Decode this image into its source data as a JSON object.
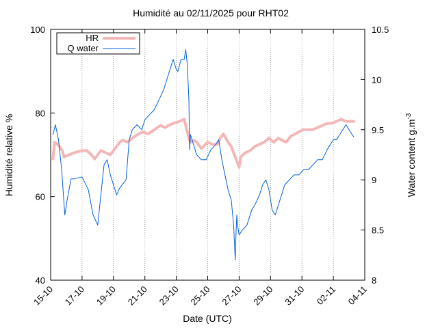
{
  "chart_data": {
    "type": "line",
    "title": "Humidité au 02/11/2025 pour RHT02",
    "xlabel": "Date (UTC)",
    "ylabel": "Humidité relative %",
    "y2label_main": "Water content g.m",
    "y2label_sup": "-3",
    "xlim": [
      0,
      20
    ],
    "ylim": [
      40,
      100
    ],
    "y2lim": [
      8,
      10.5
    ],
    "x_ticks": [
      {
        "x": 0,
        "label": "15-10"
      },
      {
        "x": 2,
        "label": "17-10"
      },
      {
        "x": 4,
        "label": "19-10"
      },
      {
        "x": 6,
        "label": "21-10"
      },
      {
        "x": 8,
        "label": "23-10"
      },
      {
        "x": 10,
        "label": "25-10"
      },
      {
        "x": 12,
        "label": "27-10"
      },
      {
        "x": 14,
        "label": "29-10"
      },
      {
        "x": 16,
        "label": "31-10"
      },
      {
        "x": 18,
        "label": "02-11"
      },
      {
        "x": 20,
        "label": "04-11"
      }
    ],
    "y_ticks": [
      {
        "v": 40,
        "label": "40"
      },
      {
        "v": 60,
        "label": "60"
      },
      {
        "v": 80,
        "label": "80"
      },
      {
        "v": 100,
        "label": "100"
      }
    ],
    "y2_ticks": [
      {
        "v": 8,
        "label": "8"
      },
      {
        "v": 8.5,
        "label": "8.5"
      },
      {
        "v": 9,
        "label": "9"
      },
      {
        "v": 9.5,
        "label": "9.5"
      },
      {
        "v": 10,
        "label": "10"
      },
      {
        "v": 10.5,
        "label": "10.5"
      }
    ],
    "grid": "vertical dotted at x ticks",
    "legend": "top-left",
    "series": [
      {
        "name": "HR",
        "axis": "left",
        "color": "#f4b6b6",
        "x": [
          0.15,
          0.25,
          0.45,
          0.75,
          0.85,
          1.2,
          1.5,
          2.0,
          2.3,
          2.6,
          2.8,
          3.0,
          3.2,
          3.5,
          3.8,
          4.2,
          4.4,
          4.6,
          4.9,
          5.2,
          5.6,
          5.9,
          6.2,
          6.6,
          7.0,
          7.3,
          7.5,
          7.8,
          8.2,
          8.5,
          8.8,
          8.9,
          9.1,
          9.3,
          9.6,
          10.0,
          10.3,
          10.6,
          10.8,
          11.0,
          11.3,
          11.5,
          11.7,
          11.9,
          12.0,
          12.1,
          12.4,
          12.7,
          13.0,
          13.3,
          13.6,
          13.9,
          14.2,
          14.5,
          14.7,
          15.0,
          15.3,
          15.6,
          15.8,
          16.1,
          16.4,
          16.7,
          17.0,
          17.3,
          17.6,
          17.9,
          18.2,
          18.5,
          18.8,
          19.1,
          19.3
        ],
        "y": [
          69,
          73,
          72.5,
          71,
          69.5,
          70,
          70.5,
          71,
          71,
          70,
          69,
          70,
          71,
          70.5,
          70,
          72,
          73,
          73.5,
          73,
          74,
          75,
          75.5,
          75,
          76,
          77,
          76.5,
          77,
          77.5,
          78,
          78.5,
          74,
          73,
          73.5,
          73,
          71.5,
          73,
          72.5,
          72.5,
          74,
          75,
          73,
          72,
          70,
          68,
          67,
          69.5,
          70.5,
          71,
          72,
          72.5,
          73,
          74,
          73,
          74,
          73.5,
          73,
          74.5,
          75,
          75.5,
          76,
          76,
          76,
          76.5,
          77,
          77.5,
          77.5,
          78,
          78.5,
          78,
          78,
          78
        ]
      },
      {
        "name": "Q water",
        "axis": "right",
        "color": "#0060e0",
        "x": [
          0.15,
          0.3,
          0.5,
          0.7,
          0.9,
          1.05,
          1.3,
          1.5,
          2.0,
          2.4,
          2.7,
          3.0,
          3.2,
          3.4,
          3.6,
          3.8,
          4.0,
          4.2,
          4.4,
          4.8,
          5.0,
          5.2,
          5.5,
          5.8,
          6.0,
          6.3,
          6.6,
          6.9,
          7.2,
          7.5,
          7.8,
          8.0,
          8.1,
          8.3,
          8.5,
          8.6,
          8.7,
          8.8,
          8.85,
          8.9,
          9.1,
          9.3,
          9.6,
          9.9,
          10.2,
          10.5,
          10.7,
          10.9,
          11.1,
          11.3,
          11.5,
          11.65,
          11.75,
          11.8,
          11.85,
          11.9,
          12.0,
          12.2,
          12.5,
          12.8,
          13.0,
          13.3,
          13.5,
          13.7,
          13.9,
          14.1,
          14.3,
          14.6,
          14.9,
          15.2,
          15.5,
          15.8,
          16.1,
          16.4,
          16.7,
          17.0,
          17.3,
          17.6,
          17.8,
          18.0,
          18.2,
          18.4,
          18.6,
          18.8,
          19.0,
          19.2,
          19.3
        ],
        "y": [
          9.45,
          9.55,
          9.4,
          9.1,
          8.65,
          8.8,
          9.01,
          9.01,
          9.03,
          8.9,
          8.65,
          8.55,
          8.85,
          9.15,
          9.2,
          9.05,
          8.95,
          8.85,
          8.92,
          9.0,
          9.4,
          9.5,
          9.55,
          9.5,
          9.6,
          9.65,
          9.7,
          9.8,
          9.9,
          10.05,
          10.2,
          10.1,
          10.08,
          10.2,
          10.2,
          10.3,
          10.15,
          9.8,
          9.3,
          9.45,
          9.35,
          9.25,
          9.2,
          9.2,
          9.3,
          9.35,
          9.4,
          9.2,
          9.05,
          8.9,
          8.8,
          8.55,
          8.2,
          8.45,
          8.65,
          8.55,
          8.45,
          8.5,
          8.55,
          8.7,
          8.75,
          8.85,
          8.95,
          9.0,
          8.9,
          8.7,
          8.65,
          8.8,
          8.95,
          9.0,
          9.05,
          9.05,
          9.1,
          9.1,
          9.15,
          9.2,
          9.2,
          9.3,
          9.35,
          9.4,
          9.4,
          9.45,
          9.5,
          9.55,
          9.5,
          9.45,
          9.43
        ]
      }
    ]
  }
}
